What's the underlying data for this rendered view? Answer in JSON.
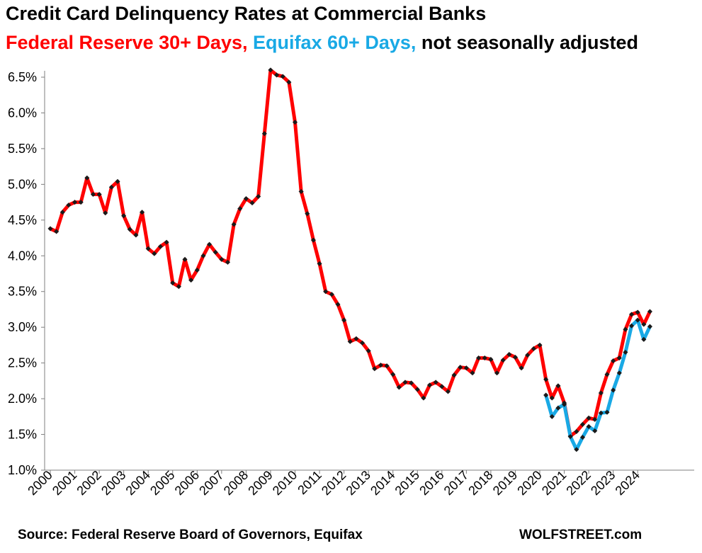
{
  "title": "Credit Card Delinquency Rates at Commercial Banks",
  "subtitle": {
    "part1": "Federal Reserve 30+ Days,",
    "part2": "Equifax 60+ Days,",
    "part3": "not seasonally adjusted"
  },
  "source": "Source: Federal Reserve Board of Governors, Equifax",
  "brand": "WOLFSTREET.com",
  "chart_data": {
    "type": "line",
    "title": "Credit Card Delinquency Rates at Commercial Banks",
    "xlabel": "",
    "ylabel": "",
    "ylim": [
      1.0,
      6.5
    ],
    "y_ticks": [
      {
        "value": 1.0,
        "label": "1.0%"
      },
      {
        "value": 1.5,
        "label": "1.5%"
      },
      {
        "value": 2.0,
        "label": "2.0%"
      },
      {
        "value": 2.5,
        "label": "2.5%"
      },
      {
        "value": 3.0,
        "label": "3.0%"
      },
      {
        "value": 3.5,
        "label": "3.5%"
      },
      {
        "value": 4.0,
        "label": "4.0%"
      },
      {
        "value": 4.5,
        "label": "4.5%"
      },
      {
        "value": 5.0,
        "label": "5.0%"
      },
      {
        "value": 5.5,
        "label": "5.5%"
      },
      {
        "value": 6.0,
        "label": "6.0%"
      },
      {
        "value": 6.5,
        "label": "6.5%"
      }
    ],
    "x_ticks": [
      "2000",
      "2001",
      "2002",
      "2003",
      "2004",
      "2005",
      "2006",
      "2007",
      "2008",
      "2009",
      "2010",
      "2011",
      "2012",
      "2013",
      "2014",
      "2015",
      "2016",
      "2017",
      "2018",
      "2019",
      "2020",
      "2021",
      "2022",
      "2023",
      "2024"
    ],
    "grid": false,
    "legend": "none",
    "marker_color": "#1a1a1a",
    "series": [
      {
        "color": "#ff0000",
        "start_year": 2000,
        "step": 0.25,
        "values": [
          4.38,
          4.34,
          4.61,
          4.71,
          4.75,
          4.75,
          5.09,
          4.86,
          4.86,
          4.6,
          4.96,
          5.04,
          4.56,
          4.37,
          4.29,
          4.61,
          4.1,
          4.03,
          4.13,
          4.19,
          3.62,
          3.57,
          3.95,
          3.66,
          3.8,
          4.0,
          4.16,
          4.05,
          3.95,
          3.91,
          4.44,
          4.66,
          4.8,
          4.74,
          4.83,
          5.71,
          6.6,
          6.53,
          6.51,
          6.43,
          5.87,
          4.9,
          4.59,
          4.22,
          3.89,
          3.5,
          3.46,
          3.32,
          3.1,
          2.8,
          2.84,
          2.78,
          2.67,
          2.42,
          2.47,
          2.46,
          2.34,
          2.16,
          2.23,
          2.22,
          2.13,
          2.01,
          2.19,
          2.23,
          2.17,
          2.1,
          2.33,
          2.44,
          2.43,
          2.36,
          2.57,
          2.57,
          2.55,
          2.36,
          2.54,
          2.62,
          2.58,
          2.43,
          2.61,
          2.7,
          2.75,
          2.27,
          2.01,
          2.18,
          1.94,
          1.48,
          1.54,
          1.64,
          1.73,
          1.71,
          2.08,
          2.34,
          2.53,
          2.57,
          2.97,
          3.18,
          3.21,
          3.04,
          3.22
        ]
      },
      {
        "color": "#19a9e5",
        "start_year": 2020.25,
        "step": 0.25,
        "values": [
          2.05,
          1.75,
          1.87,
          1.92,
          1.47,
          1.29,
          1.46,
          1.61,
          1.55,
          1.8,
          1.81,
          2.12,
          2.36,
          2.65,
          3.02,
          3.1,
          2.83,
          3.01
        ]
      }
    ]
  }
}
